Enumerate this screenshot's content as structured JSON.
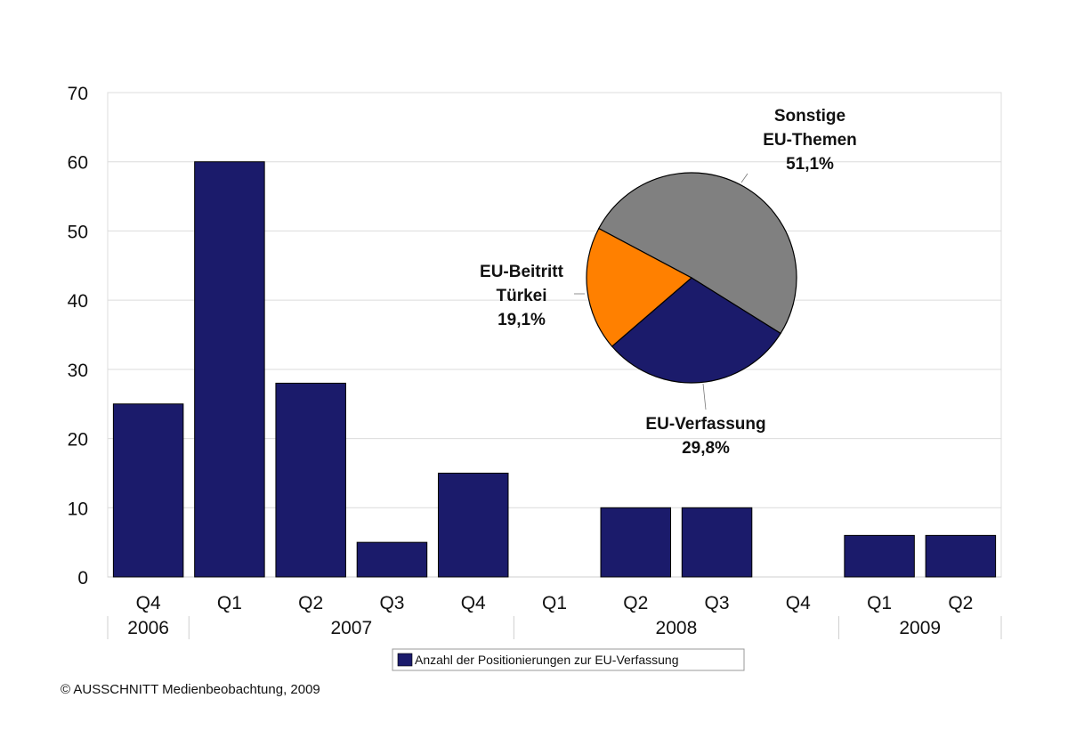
{
  "chart_data": [
    {
      "type": "bar",
      "categories": [
        "Q4",
        "Q1",
        "Q2",
        "Q3",
        "Q4",
        "Q1",
        "Q2",
        "Q3",
        "Q4",
        "Q1",
        "Q2"
      ],
      "year_groups": [
        {
          "label": "2006",
          "count": 1
        },
        {
          "label": "2007",
          "count": 4
        },
        {
          "label": "2008",
          "count": 4
        },
        {
          "label": "2009",
          "count": 2
        }
      ],
      "series": [
        {
          "name": "Anzahl der Positionierungen zur EU-Verfassung",
          "values": [
            25,
            60,
            28,
            5,
            15,
            0,
            10,
            10,
            0,
            6,
            6
          ],
          "color": "#1b1b6b"
        }
      ],
      "ylim": [
        0,
        70
      ],
      "yticks": [
        0,
        10,
        20,
        30,
        40,
        50,
        60,
        70
      ],
      "grid": true,
      "legend": "bottom"
    },
    {
      "type": "pie",
      "slices": [
        {
          "label_lines": [
            "Sonstige",
            "EU-Themen"
          ],
          "value_label": "51,1%",
          "value": 51.1,
          "color": "#808080"
        },
        {
          "label_lines": [
            "EU-Verfassung"
          ],
          "value_label": "29,8%",
          "value": 29.8,
          "color": "#1b1b6b"
        },
        {
          "label_lines": [
            "EU-Beitritt",
            "Türkei"
          ],
          "value_label": "19,1%",
          "value": 19.1,
          "color": "#ff8000"
        }
      ]
    }
  ],
  "footer": "© AUSSCHNITT Medienbeobachtung, 2009"
}
